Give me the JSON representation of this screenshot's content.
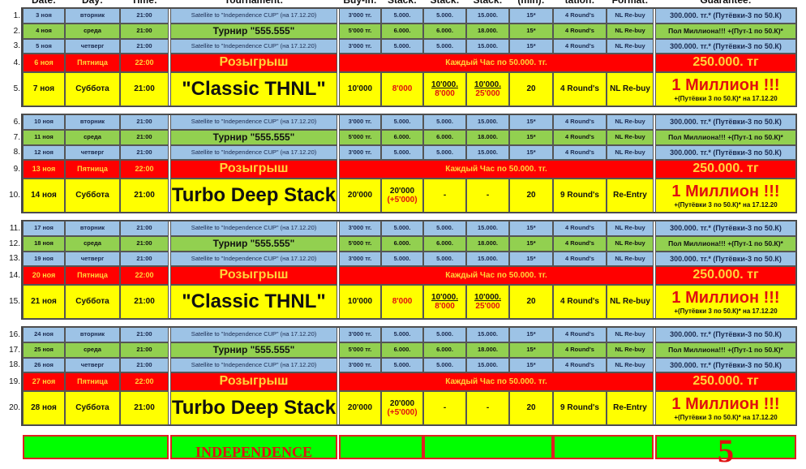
{
  "headers": [
    "Date:",
    "Day:",
    "Time:",
    "Tournament:",
    "Buy-in:",
    "Stack:",
    "Stack:",
    "Stack:",
    "(min):",
    "tation:",
    "Format:",
    "Guarantee:"
  ],
  "colors": {
    "satellite": "#9dc3e6",
    "turnir": "#92d050",
    "draw": "#ff0000",
    "main": "#ffff00",
    "bottom": "#00ff00"
  },
  "blocks": [
    {
      "rows": [
        {
          "n": "1.",
          "type": "sat",
          "date": "3 ноя",
          "day": "вторник",
          "time": "21:00",
          "tournament": "Satellite to \"Independence CUP\" (на 17.12.20)",
          "buyin": "3'000 тг.",
          "stack1": "5.000.",
          "stack2": "5.000.",
          "stack3": "15.000.",
          "min": "15*",
          "rounds": "4 Round's",
          "format": "NL Re-buy",
          "guarantee": "300.000. тг.* (Путёвки-3 по 50.К)"
        },
        {
          "n": "2.",
          "type": "tur",
          "date": "4 ноя",
          "day": "среда",
          "time": "21:00",
          "tournament": "Турнир \"555.555\"",
          "buyin": "5'000 тг.",
          "stack1": "6.000.",
          "stack2": "6.000.",
          "stack3": "18.000.",
          "min": "15*",
          "rounds": "4 Round's",
          "format": "NL Re-buy",
          "guarantee": "Пол Миллиона!!! +(Пут-1 по 50.К)*"
        },
        {
          "n": "3.",
          "type": "sat",
          "date": "5 ноя",
          "day": "четверг",
          "time": "21:00",
          "tournament": "Satellite to \"Independence CUP\" (на 17.12.20)",
          "buyin": "3'000 тг.",
          "stack1": "5.000.",
          "stack2": "5.000.",
          "stack3": "15.000.",
          "min": "15*",
          "rounds": "4 Round's",
          "format": "NL Re-buy",
          "guarantee": "300.000. тг.* (Путёвки-3 по 50.К)"
        },
        {
          "n": "4.",
          "type": "draw",
          "date": "6 ноя",
          "day": "Пятница",
          "time": "22:00",
          "tournament": "Розыгрыш",
          "info": "Каждый Час по 50.000. тг.",
          "guarantee": "250.000. тг"
        },
        {
          "n": "5.",
          "type": "main",
          "date": "7 ноя",
          "day": "Суббота",
          "time": "21:00",
          "tournament": "\"Classic THNL\"",
          "buyin": "10'000",
          "stack1": "8'000",
          "stack2": "10'000.",
          "stack2b": "8'000",
          "stack3": "10'000.",
          "stack3b": "25'000",
          "min": "20",
          "rounds": "4 Round's",
          "format": "NL Re-buy",
          "guarantee": "1 Миллион !!!",
          "guarantee_sub": "+(Путёвки 3 по 50.К)* на 17.12.20"
        }
      ]
    },
    {
      "rows": [
        {
          "n": "6.",
          "type": "sat",
          "date": "10 ноя",
          "day": "вторник",
          "time": "21:00",
          "tournament": "Satellite to \"Independence CUP\" (на 17.12.20)",
          "buyin": "3'000 тг.",
          "stack1": "5.000.",
          "stack2": "5.000.",
          "stack3": "15.000.",
          "min": "15*",
          "rounds": "4 Round's",
          "format": "NL Re-buy",
          "guarantee": "300.000. тг.* (Путёвки-3 по 50.К)"
        },
        {
          "n": "7.",
          "type": "tur",
          "date": "11 ноя",
          "day": "среда",
          "time": "21:00",
          "tournament": "Турнир \"555.555\"",
          "buyin": "5'000 тг.",
          "stack1": "6.000.",
          "stack2": "6.000.",
          "stack3": "18.000.",
          "min": "15*",
          "rounds": "4 Round's",
          "format": "NL Re-buy",
          "guarantee": "Пол Миллиона!!! +(Пут-1 по 50.К)*"
        },
        {
          "n": "8.",
          "type": "sat",
          "date": "12 ноя",
          "day": "четверг",
          "time": "21:00",
          "tournament": "Satellite to \"Independence CUP\" (на 17.12.20)",
          "buyin": "3'000 тг.",
          "stack1": "5.000.",
          "stack2": "5.000.",
          "stack3": "15.000.",
          "min": "15*",
          "rounds": "4 Round's",
          "format": "NL Re-buy",
          "guarantee": "300.000. тг.* (Путёвки-3 по 50.К)"
        },
        {
          "n": "9.",
          "type": "draw",
          "date": "13 ноя",
          "day": "Пятница",
          "time": "22:00",
          "tournament": "Розыгрыш",
          "info": "Каждый Час по 50.000. тг.",
          "guarantee": "250.000. тг"
        },
        {
          "n": "10.",
          "type": "main",
          "date": "14 ноя",
          "day": "Суббота",
          "time": "21:00",
          "tournament": "\"Turbo Deep Stack\"",
          "buyin": "20'000",
          "stack1": "20'000",
          "stack1b": "(+5'000)",
          "stack2": "-",
          "stack3": "-",
          "min": "20",
          "rounds": "9 Round's",
          "format": "Re-Entry",
          "guarantee": "1 Миллион !!!",
          "guarantee_sub": "+(Путёвки 3 по 50.К)* на 17.12.20"
        }
      ]
    },
    {
      "rows": [
        {
          "n": "11.",
          "type": "sat",
          "date": "17 ноя",
          "day": "вторник",
          "time": "21:00",
          "tournament": "Satellite to \"Independence CUP\" (на 17.12.20)",
          "buyin": "3'000 тг.",
          "stack1": "5.000.",
          "stack2": "5.000.",
          "stack3": "15.000.",
          "min": "15*",
          "rounds": "4 Round's",
          "format": "NL Re-buy",
          "guarantee": "300.000. тг.* (Путёвки-3 по 50.К)"
        },
        {
          "n": "12.",
          "type": "tur",
          "date": "18 ноя",
          "day": "среда",
          "time": "21:00",
          "tournament": "Турнир \"555.555\"",
          "buyin": "5'000 тг.",
          "stack1": "6.000.",
          "stack2": "6.000.",
          "stack3": "18.000.",
          "min": "15*",
          "rounds": "4 Round's",
          "format": "NL Re-buy",
          "guarantee": "Пол Миллиона!!! +(Пут-1 по 50.К)*"
        },
        {
          "n": "13.",
          "type": "sat",
          "date": "19 ноя",
          "day": "четверг",
          "time": "21:00",
          "tournament": "Satellite to \"Independence CUP\" (на 17.12.20)",
          "buyin": "3'000 тг.",
          "stack1": "5.000.",
          "stack2": "5.000.",
          "stack3": "15.000.",
          "min": "15*",
          "rounds": "4 Round's",
          "format": "NL Re-buy",
          "guarantee": "300.000. тг.* (Путёвки-3 по 50.К)"
        },
        {
          "n": "14.",
          "type": "draw",
          "date": "20 ноя",
          "day": "Пятница",
          "time": "22:00",
          "tournament": "Розыгрыш",
          "info": "Каждый Час по 50.000. тг.",
          "guarantee": "250.000. тг"
        },
        {
          "n": "15.",
          "type": "main",
          "date": "21 ноя",
          "day": "Суббота",
          "time": "21:00",
          "tournament": "\"Classic THNL\"",
          "buyin": "10'000",
          "stack1": "8'000",
          "stack2": "10'000.",
          "stack2b": "8'000",
          "stack3": "10'000.",
          "stack3b": "25'000",
          "min": "20",
          "rounds": "4 Round's",
          "format": "NL Re-buy",
          "guarantee": "1 Миллион !!!",
          "guarantee_sub": "+(Путёвки 3 по 50.К)* на 17.12.20"
        }
      ]
    },
    {
      "rows": [
        {
          "n": "16.",
          "type": "sat",
          "date": "24 ноя",
          "day": "вторник",
          "time": "21:00",
          "tournament": "Satellite to \"Independence CUP\" (на 17.12.20)",
          "buyin": "3'000 тг.",
          "stack1": "5.000.",
          "stack2": "5.000.",
          "stack3": "15.000.",
          "min": "15*",
          "rounds": "4 Round's",
          "format": "NL Re-buy",
          "guarantee": "300.000. тг.* (Путёвки-3 по 50.К)"
        },
        {
          "n": "17.",
          "type": "tur",
          "date": "25 ноя",
          "day": "среда",
          "time": "21:00",
          "tournament": "Турнир \"555.555\"",
          "buyin": "5'000 тг.",
          "stack1": "6.000.",
          "stack2": "6.000.",
          "stack3": "18.000.",
          "min": "15*",
          "rounds": "4 Round's",
          "format": "NL Re-buy",
          "guarantee": "Пол Миллиона!!! +(Пут-1 по 50.К)*"
        },
        {
          "n": "18.",
          "type": "sat",
          "date": "26 ноя",
          "day": "четверг",
          "time": "21:00",
          "tournament": "Satellite to \"Independence CUP\" (на 17.12.20)",
          "buyin": "3'000 тг.",
          "stack1": "5.000.",
          "stack2": "5.000.",
          "stack3": "15.000.",
          "min": "15*",
          "rounds": "4 Round's",
          "format": "NL Re-buy",
          "guarantee": "300.000. тг.* (Путёвки-3 по 50.К)"
        },
        {
          "n": "19.",
          "type": "draw",
          "date": "27 ноя",
          "day": "Пятница",
          "time": "22:00",
          "tournament": "Розыгрыш",
          "info": "Каждый Час по 50.000. тг.",
          "guarantee": "250.000. тг"
        },
        {
          "n": "20.",
          "type": "main",
          "date": "28 ноя",
          "day": "Суббота",
          "time": "21:00",
          "tournament": "\"Turbo Deep Stack\"",
          "buyin": "20'000",
          "stack1": "20'000",
          "stack1b": "(+5'000)",
          "stack2": "-",
          "stack3": "-",
          "min": "20",
          "rounds": "9 Round's",
          "format": "Re-Entry",
          "guarantee": "1 Миллион !!!",
          "guarantee_sub": "+(Путёвки 3 по 50.К)* на 17.12.20"
        }
      ]
    }
  ],
  "bottom": {
    "tournament": "INDEPENDENCE",
    "guarantee": "5"
  }
}
